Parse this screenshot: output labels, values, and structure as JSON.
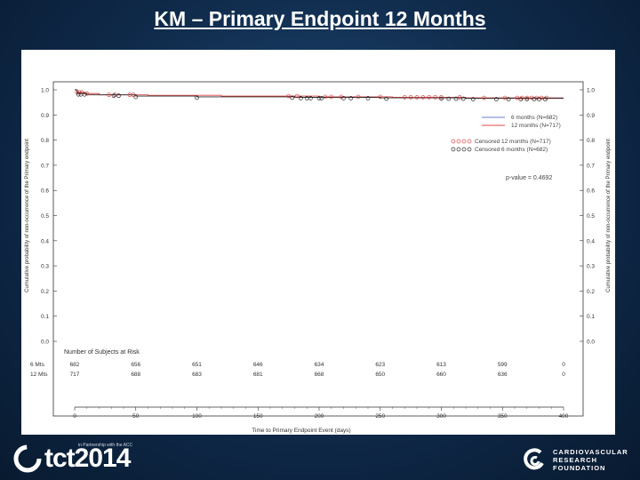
{
  "slide": {
    "title": "KM – Primary Endpoint 12 Months"
  },
  "colors": {
    "background": "#0f2a4a",
    "series_12m": "#e04848",
    "series_6m": "#2a2a2a",
    "series_6m_legend": "#6a7fc8"
  },
  "chart_data": {
    "type": "line",
    "title": "",
    "xlabel": "Time to Primary Endpoint Event (days)",
    "ylabel_left": "Cumulative probability of non-occurrence of the Primary endpoint",
    "ylabel_right": "Cumulative probability of non-occurrence of the Primary endpoint",
    "xlim": [
      0,
      400
    ],
    "ylim": [
      0.0,
      1.0
    ],
    "x_ticks": [
      0,
      50,
      100,
      150,
      200,
      250,
      300,
      350,
      400
    ],
    "y_ticks": [
      0.0,
      0.1,
      0.2,
      0.3,
      0.4,
      0.5,
      0.6,
      0.7,
      0.8,
      0.9,
      1.0
    ],
    "y_tick_labels": [
      "0.0",
      "0.1",
      "0.2",
      "0.3",
      "0.4",
      "0.5",
      "0.6",
      "0.7",
      "0.8",
      "0.9",
      "1.0"
    ],
    "legend_position": "top-right",
    "legend": [
      {
        "label": "6 months (N=682)",
        "color": "#6a7fc8",
        "style": "line"
      },
      {
        "label": "12 months (N=717)",
        "color": "#e04848",
        "style": "line"
      },
      {
        "label": "Censored 12 months (N=717)",
        "color": "#e04848",
        "style": "marker"
      },
      {
        "label": "Censored 6 months (N=682)",
        "color": "#2a2a2a",
        "style": "marker"
      }
    ],
    "pvalue_text": "p-value = 0.4692",
    "series": [
      {
        "name": "12 months (N=717)",
        "color": "#e04848",
        "points": [
          [
            0,
            1.0
          ],
          [
            2,
            0.99
          ],
          [
            8,
            0.985
          ],
          [
            20,
            0.98
          ],
          [
            60,
            0.978
          ],
          [
            120,
            0.975
          ],
          [
            200,
            0.972
          ],
          [
            260,
            0.97
          ],
          [
            320,
            0.968
          ],
          [
            400,
            0.968
          ]
        ],
        "censored_x": [
          2,
          4,
          6,
          10,
          28,
          33,
          45,
          48,
          175,
          182,
          205,
          210,
          218,
          232,
          250,
          270,
          275,
          280,
          285,
          290,
          295,
          300,
          315,
          335,
          352,
          362,
          366,
          370,
          374,
          378,
          382,
          386
        ]
      },
      {
        "name": "6 months (N=682)",
        "color": "#2a2a2a",
        "points": [
          [
            0,
            1.0
          ],
          [
            2,
            0.985
          ],
          [
            10,
            0.98
          ],
          [
            50,
            0.975
          ],
          [
            100,
            0.972
          ],
          [
            180,
            0.97
          ],
          [
            250,
            0.968
          ],
          [
            320,
            0.966
          ],
          [
            400,
            0.966
          ]
        ],
        "censored_x": [
          3,
          5,
          8,
          32,
          36,
          50,
          100,
          178,
          185,
          190,
          193,
          200,
          202,
          220,
          226,
          240,
          255,
          300,
          306,
          312,
          318,
          326,
          345,
          355,
          365,
          370,
          376,
          380,
          385
        ]
      }
    ],
    "risk_table": {
      "title": "Number of Subjects at Risk",
      "rows": [
        {
          "label": "6 Mts",
          "values": [
            "682",
            "656",
            "651",
            "646",
            "634",
            "623",
            "613",
            "599",
            "0"
          ]
        },
        {
          "label": "12 Mts",
          "values": [
            "717",
            "688",
            "683",
            "681",
            "668",
            "650",
            "660",
            "636",
            "0"
          ]
        }
      ]
    }
  },
  "footer": {
    "left_small": "in Partnership with the ACC",
    "left_brand": "tct2014",
    "right_lines": [
      "CARDIOVASCULAR",
      "RESEARCH",
      "FOUNDATION"
    ]
  }
}
